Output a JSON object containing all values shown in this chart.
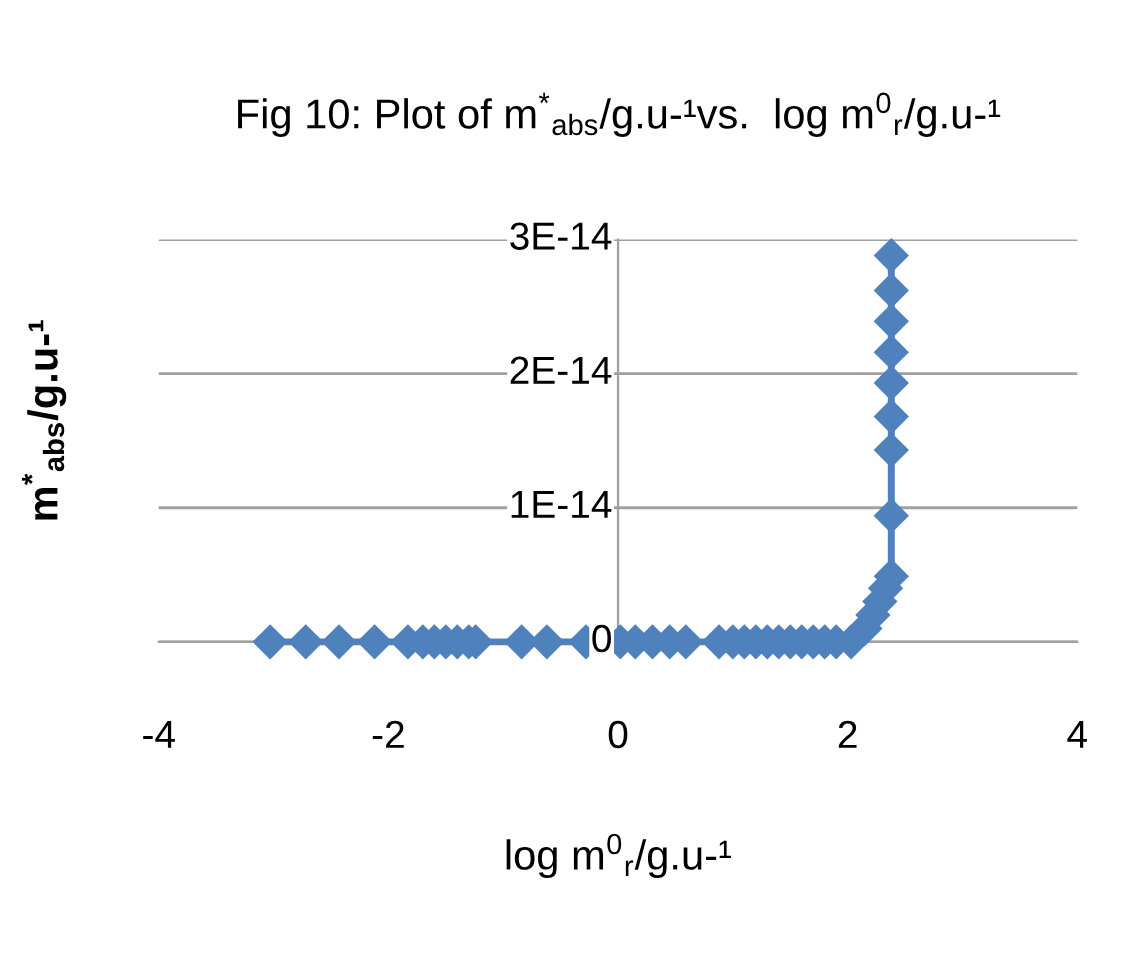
{
  "chart_data": {
    "type": "line",
    "title": "Fig 10: Plot of m$^{*}$$_{abs}$/g.u-¹vs.  log m$^{0}$$_{r}$/g.u-¹",
    "xlabel": "log m$^{0}$$_{r}$/g.u-¹",
    "ylabel": "m$^{*}$$_{abs}$/g.u-¹",
    "series": [
      {
        "color": "#4f81bd",
        "x": [
          -3.03,
          -2.72,
          -2.43,
          -2.12,
          -1.83,
          -1.7,
          -1.6,
          -1.5,
          -1.4,
          -1.3,
          -1.24,
          -0.84,
          -0.62,
          -0.28,
          0.02,
          0.15,
          0.3,
          0.45,
          0.59,
          0.88,
          1.0,
          1.1,
          1.2,
          1.3,
          1.4,
          1.5,
          1.6,
          1.7,
          1.8,
          1.9,
          2.03,
          2.15,
          2.22,
          2.28,
          2.33,
          2.38,
          2.38,
          2.38,
          2.38,
          2.38,
          2.38,
          2.38,
          2.38,
          2.38
        ],
        "values": [
          0,
          0,
          0,
          0,
          0,
          0,
          0,
          0,
          0,
          0,
          0,
          0,
          0,
          0,
          0,
          0,
          0,
          0,
          0,
          0,
          0,
          0,
          0,
          0,
          0,
          0,
          0,
          0,
          0,
          0,
          0,
          1e-15,
          2e-15,
          3e-15,
          4e-15,
          4.9e-15,
          9.4e-15,
          1.43e-14,
          1.68e-14,
          1.93e-14,
          2.16e-14,
          2.39e-14,
          2.62e-14,
          2.88e-14
        ]
      }
    ],
    "xlim": [
      -4,
      4
    ],
    "xticks": [
      -4,
      -2,
      0,
      2,
      4
    ],
    "ylim": [
      0,
      3e-14
    ],
    "yticks": [
      {
        "value": 0,
        "label": "0"
      },
      {
        "value": 1e-14,
        "label": "1E-14"
      },
      {
        "value": 2e-14,
        "label": "2E-14"
      },
      {
        "value": 3e-14,
        "label": "3E-14"
      }
    ],
    "grid": "y",
    "marker": "diamond",
    "line_style": "solid"
  }
}
